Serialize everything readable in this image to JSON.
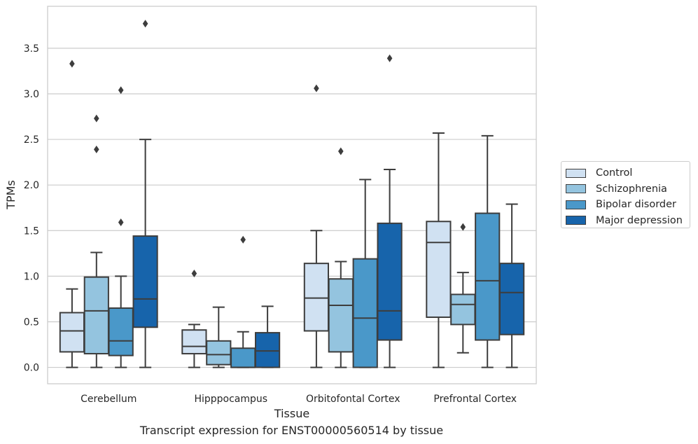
{
  "caption": "Transcript expression for ENST00000560514 by tissue",
  "chart_data": {
    "type": "box",
    "xlabel": "Tissue",
    "ylabel": "TPMs",
    "ylim": [
      -0.18,
      3.96
    ],
    "yticks": [
      "0.0",
      "0.5",
      "1.0",
      "1.5",
      "2.0",
      "2.5",
      "3.0",
      "3.5"
    ],
    "grid": "horizontal",
    "legend_position": "right",
    "categories": [
      "Cerebellum",
      "Hipppocampus",
      "Orbitofontal Cortex",
      "Prefrontal Cortex"
    ],
    "series": [
      {
        "name": "Control",
        "color": "#d0e1f2",
        "boxes": [
          {
            "min": 0.0,
            "q1": 0.17,
            "median": 0.4,
            "q3": 0.6,
            "max": 0.86,
            "outliers": [
              3.33
            ]
          },
          {
            "min": 0.0,
            "q1": 0.15,
            "median": 0.23,
            "q3": 0.41,
            "max": 0.47,
            "outliers": [
              1.03
            ]
          },
          {
            "min": 0.0,
            "q1": 0.4,
            "median": 0.76,
            "q3": 1.14,
            "max": 1.5,
            "outliers": [
              3.06
            ]
          },
          {
            "min": 0.0,
            "q1": 0.55,
            "median": 1.37,
            "q3": 1.6,
            "max": 2.57,
            "outliers": []
          }
        ]
      },
      {
        "name": "Schizophrenia",
        "color": "#94c4df",
        "boxes": [
          {
            "min": 0.0,
            "q1": 0.15,
            "median": 0.62,
            "q3": 0.99,
            "max": 1.26,
            "outliers": [
              2.39,
              2.73
            ]
          },
          {
            "min": 0.0,
            "q1": 0.03,
            "median": 0.14,
            "q3": 0.29,
            "max": 0.66,
            "outliers": []
          },
          {
            "min": 0.0,
            "q1": 0.17,
            "median": 0.68,
            "q3": 0.97,
            "max": 1.16,
            "outliers": [
              2.37
            ]
          },
          {
            "min": 0.16,
            "q1": 0.47,
            "median": 0.69,
            "q3": 0.8,
            "max": 1.04,
            "outliers": [
              1.54
            ]
          }
        ]
      },
      {
        "name": "Bipolar disorder",
        "color": "#4a98c9",
        "boxes": [
          {
            "min": 0.0,
            "q1": 0.13,
            "median": 0.29,
            "q3": 0.65,
            "max": 1.0,
            "outliers": [
              1.59,
              3.04
            ]
          },
          {
            "min": 0.0,
            "q1": 0.0,
            "median": 0.0,
            "q3": 0.21,
            "max": 0.39,
            "outliers": [
              1.4
            ]
          },
          {
            "min": 0.0,
            "q1": 0.0,
            "median": 0.54,
            "q3": 1.19,
            "max": 2.06,
            "outliers": []
          },
          {
            "min": 0.0,
            "q1": 0.3,
            "median": 0.95,
            "q3": 1.69,
            "max": 2.54,
            "outliers": []
          }
        ]
      },
      {
        "name": "Major depression",
        "color": "#1764ab",
        "boxes": [
          {
            "min": 0.0,
            "q1": 0.44,
            "median": 0.75,
            "q3": 1.44,
            "max": 2.5,
            "outliers": [
              3.77
            ]
          },
          {
            "min": 0.0,
            "q1": 0.0,
            "median": 0.18,
            "q3": 0.38,
            "max": 0.67,
            "outliers": []
          },
          {
            "min": 0.0,
            "q1": 0.3,
            "median": 0.62,
            "q3": 1.58,
            "max": 2.17,
            "outliers": [
              3.39
            ]
          },
          {
            "min": 0.0,
            "q1": 0.36,
            "median": 0.82,
            "q3": 1.14,
            "max": 1.79,
            "outliers": []
          }
        ]
      }
    ]
  }
}
